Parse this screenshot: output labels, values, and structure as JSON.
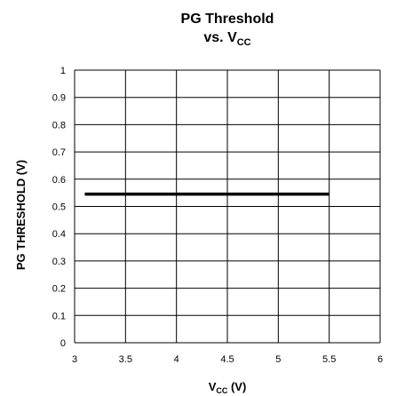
{
  "chart_data": {
    "type": "line",
    "title_line1": "PG Threshold",
    "title_line2_prefix": "vs. V",
    "title_line2_sub": "CC",
    "xlabel_prefix": "V",
    "xlabel_sub": "CC",
    "xlabel_suffix": " (V)",
    "ylabel": "PG THRESHOLD (V)",
    "xlim": [
      3,
      6
    ],
    "ylim": [
      0,
      1
    ],
    "x_ticks": [
      "3",
      "3.5",
      "4",
      "4.5",
      "5",
      "5.5",
      "6"
    ],
    "y_ticks": [
      "0",
      "0.1",
      "0.2",
      "0.3",
      "0.4",
      "0.5",
      "0.6",
      "0.7",
      "0.8",
      "0.9",
      "1"
    ],
    "grid": true,
    "legend": "none",
    "series": [
      {
        "x": [
          3.1,
          5.5
        ],
        "y": [
          0.545,
          0.545
        ],
        "color": "#000000"
      }
    ]
  }
}
